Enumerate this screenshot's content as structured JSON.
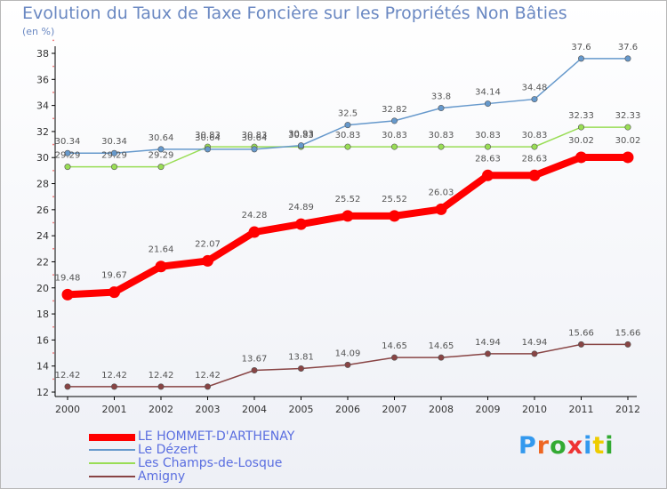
{
  "chart_data": {
    "type": "line",
    "title": "Evolution du Taux de Taxe Foncière sur les Propriétés Non Bâties",
    "ylabel": "(en %)",
    "xlabel": "",
    "categories": [
      "2000",
      "2001",
      "2002",
      "2003",
      "2004",
      "2005",
      "2006",
      "2007",
      "2008",
      "2009",
      "2010",
      "2011",
      "2012"
    ],
    "ylim": [
      12,
      38
    ],
    "yticks": [
      12,
      14,
      16,
      18,
      20,
      22,
      24,
      26,
      28,
      30,
      32,
      34,
      36,
      38
    ],
    "grid": false,
    "legend_position": "bottom-left",
    "series": [
      {
        "name": "LE HOMMET-D'ARTHENAY",
        "color": "#ff0000",
        "labels": [
          "19.48",
          "19.67",
          "21.64",
          "22.07",
          "24.28",
          "24.89",
          "25.52",
          "25.52",
          "26.03",
          "28.63",
          "28.63",
          "30.02",
          "30.02"
        ],
        "values": [
          19.48,
          19.67,
          21.64,
          22.07,
          24.28,
          24.89,
          25.52,
          25.52,
          26.03,
          28.63,
          28.63,
          30.02,
          30.02
        ]
      },
      {
        "name": "Le Dézert",
        "color": "#6699cc",
        "labels": [
          "30.34",
          "30.34",
          "30.64",
          "30.64",
          "30.64",
          "30.93",
          "32.5",
          "32.82",
          "33.8",
          "34.14",
          "34.48",
          "37.6",
          "37.6"
        ],
        "values": [
          30.34,
          30.34,
          30.64,
          30.64,
          30.64,
          30.93,
          32.5,
          32.82,
          33.8,
          34.14,
          34.48,
          37.6,
          37.6
        ]
      },
      {
        "name": "Les Champs-de-Losque",
        "color": "#99dd55",
        "labels": [
          "29.29",
          "29.29",
          "29.29",
          "30.83",
          "30.83",
          "30.83",
          "30.83",
          "30.83",
          "30.83",
          "30.83",
          "30.83",
          "32.33",
          "32.33"
        ],
        "values": [
          29.29,
          29.29,
          29.29,
          30.83,
          30.83,
          30.83,
          30.83,
          30.83,
          30.83,
          30.83,
          30.83,
          32.33,
          32.33
        ]
      },
      {
        "name": "Amigny",
        "color": "#884444",
        "labels": [
          "12.42",
          "12.42",
          "12.42",
          "12.42",
          "13.67",
          "13.81",
          "14.09",
          "14.65",
          "14.65",
          "14.94",
          "14.94",
          "15.66",
          "15.66"
        ],
        "values": [
          12.42,
          12.42,
          12.42,
          12.42,
          13.67,
          13.81,
          14.09,
          14.65,
          14.65,
          14.94,
          14.94,
          15.66,
          15.66
        ]
      }
    ]
  },
  "logo": {
    "letters": [
      "P",
      "r",
      "o",
      "x",
      "i",
      "t",
      "i"
    ],
    "colors": [
      "#3399ee",
      "#ee6622",
      "#33aa33",
      "#ee3333",
      "#3399ee",
      "#eecc00",
      "#33aa33"
    ]
  }
}
